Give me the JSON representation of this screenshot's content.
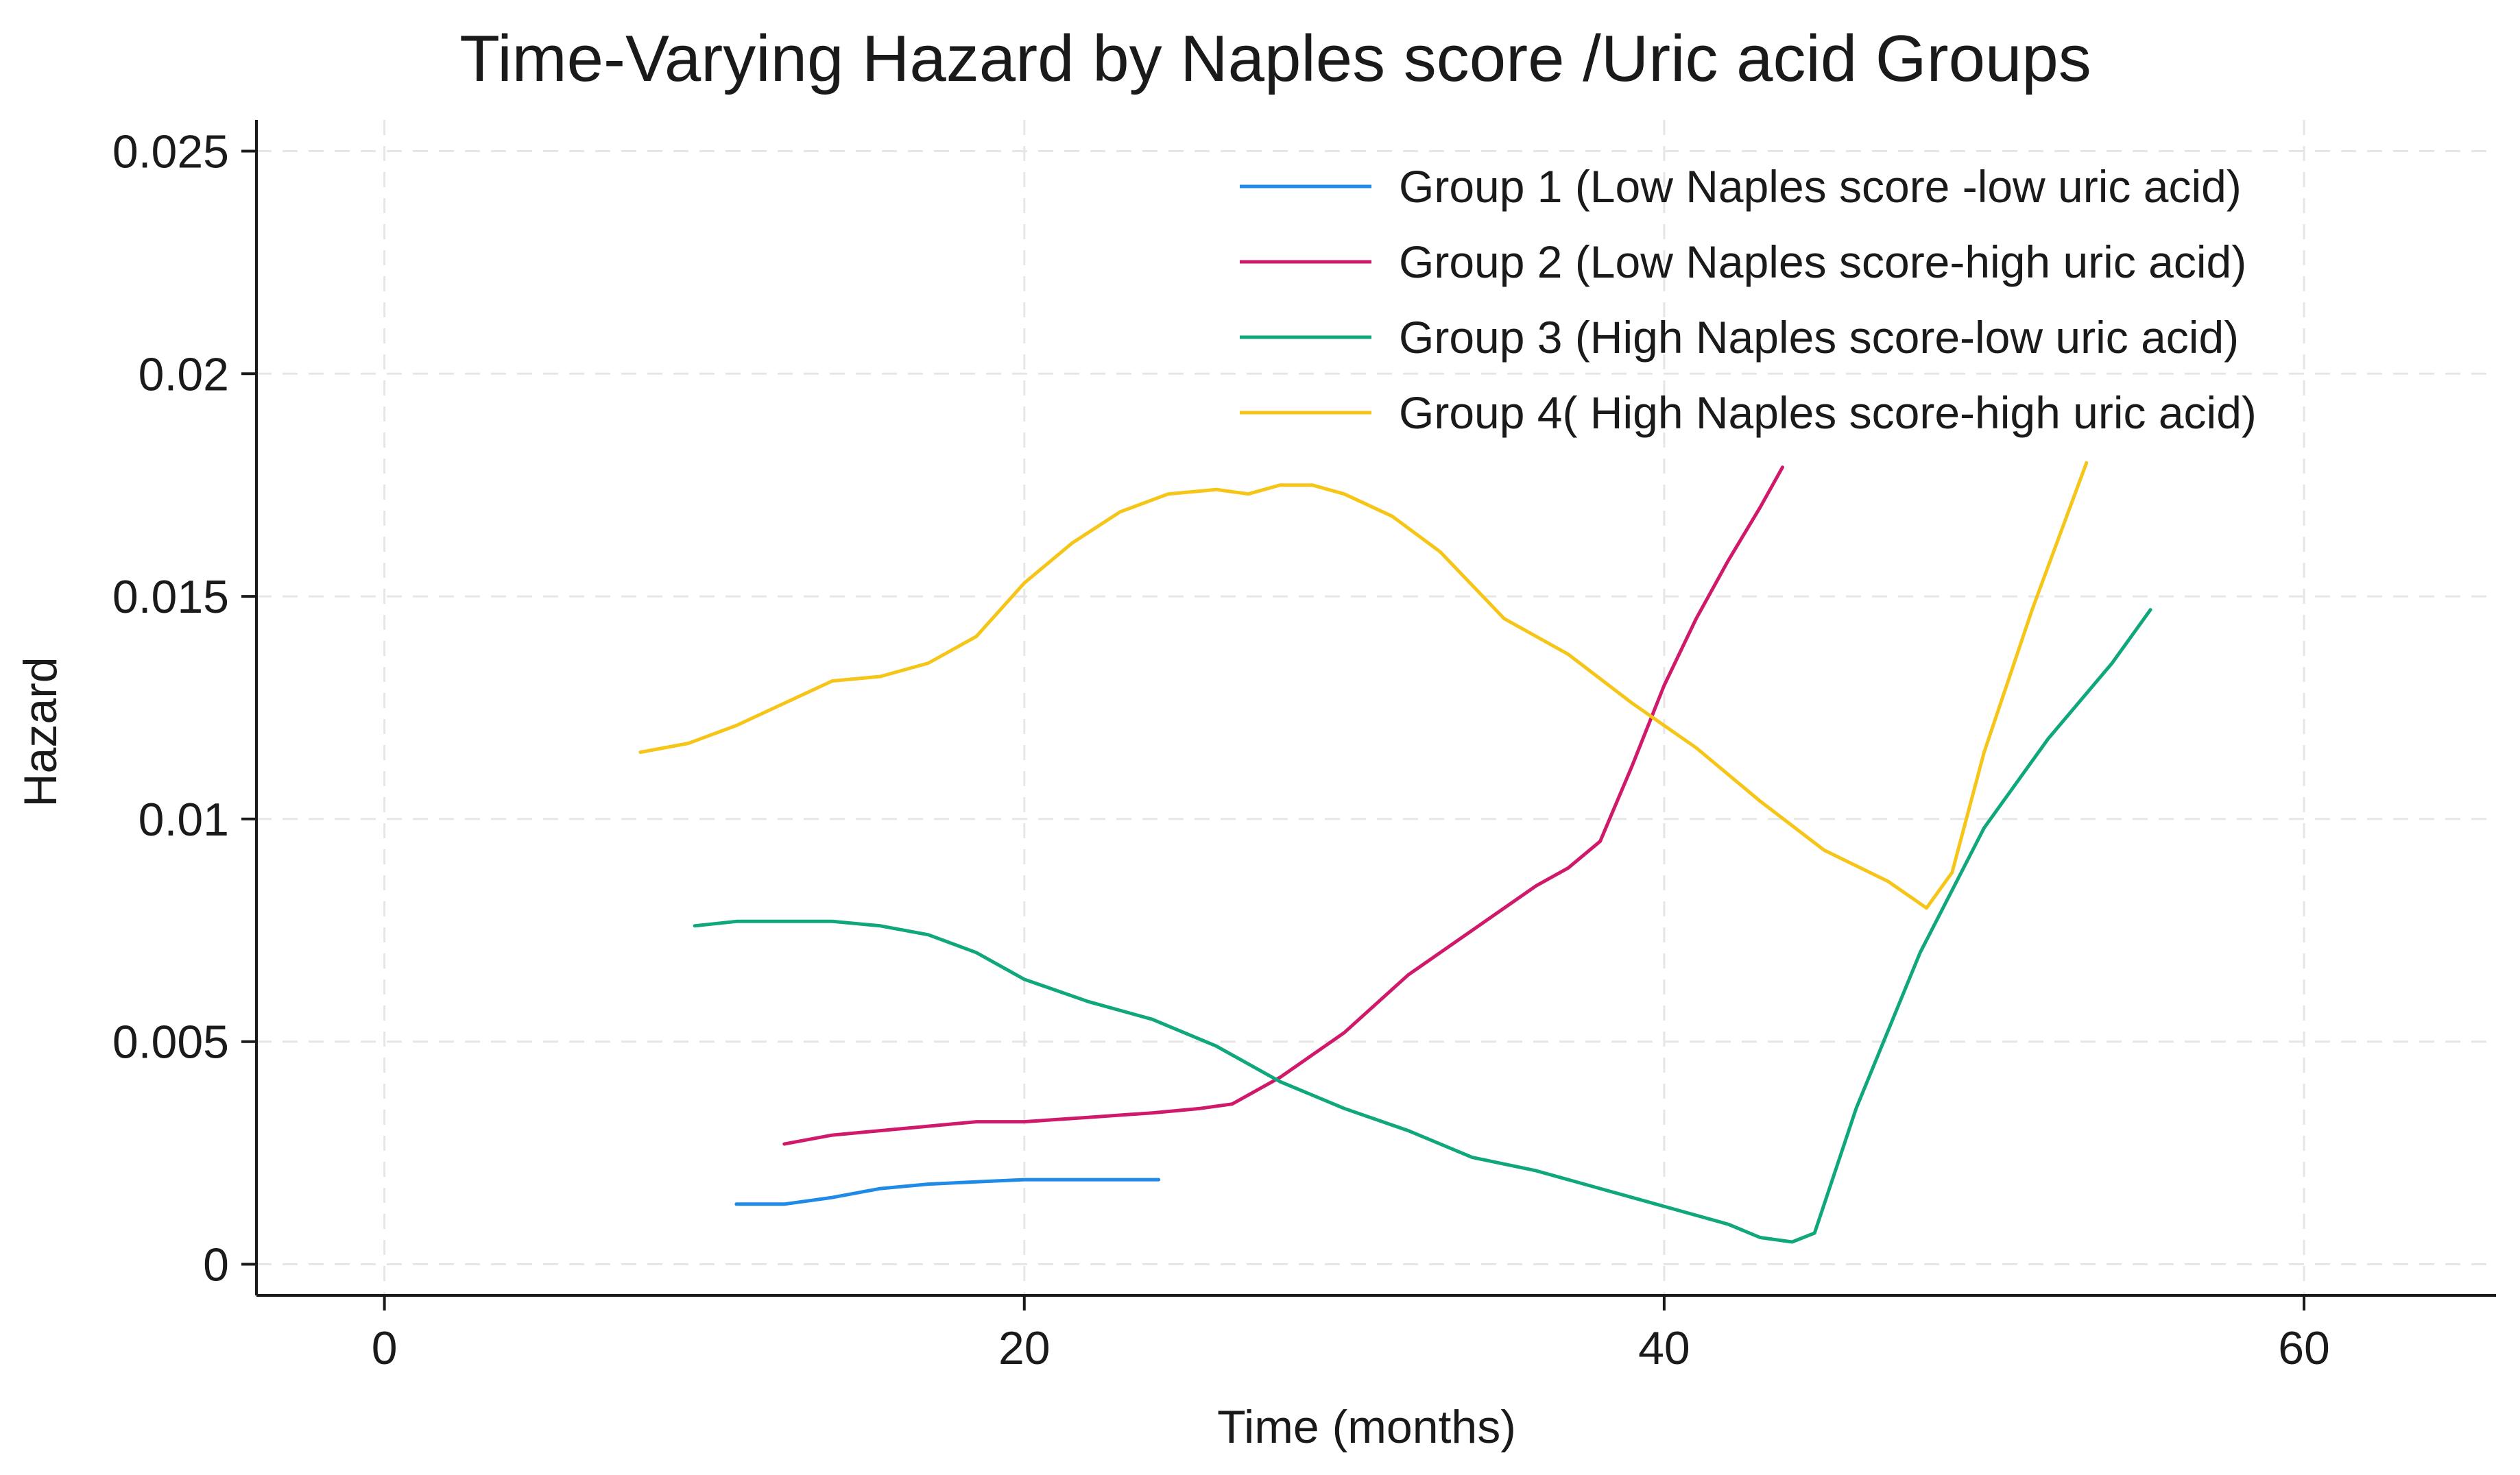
{
  "chart_data": {
    "type": "line",
    "title": "Time-Varying Hazard by Naples score /Uric acid Groups",
    "xlabel": "Time (months)",
    "ylabel": "Hazard",
    "xlim": [
      -4,
      66
    ],
    "ylim": [
      -0.0007,
      0.0257
    ],
    "xticks": [
      0,
      20,
      40,
      60
    ],
    "xtick_labels": [
      "0",
      "20",
      "40",
      "60"
    ],
    "yticks": [
      0,
      0.005,
      0.01,
      0.015,
      0.02,
      0.025
    ],
    "ytick_labels": [
      "0",
      "0.005",
      "0.01",
      "0.015",
      "0.02",
      "0.025"
    ],
    "grid": true,
    "legend_position": "top-right",
    "series": [
      {
        "name": "Group 1 (Low Naples score -low uric acid)",
        "color": "#1f8be6",
        "x": [
          11,
          12.5,
          14,
          15.5,
          17,
          18.5,
          20,
          22,
          24.2
        ],
        "y": [
          0.00135,
          0.00135,
          0.0015,
          0.0017,
          0.0018,
          0.00185,
          0.0019,
          0.0019,
          0.0019
        ]
      },
      {
        "name": "Group 2 (Low Naples score-high uric acid)",
        "color": "#d0196a",
        "x": [
          12.5,
          14,
          15.5,
          17,
          18.5,
          20,
          22,
          24,
          25.5,
          26.5,
          28,
          30,
          32,
          34,
          36,
          37,
          38,
          39,
          40,
          41,
          42,
          43,
          43.7
        ],
        "y": [
          0.0027,
          0.0029,
          0.003,
          0.0031,
          0.0032,
          0.0032,
          0.0033,
          0.0034,
          0.0035,
          0.0036,
          0.0042,
          0.0052,
          0.0065,
          0.0075,
          0.0085,
          0.0089,
          0.0095,
          0.0112,
          0.013,
          0.0145,
          0.0158,
          0.017,
          0.0179
        ]
      },
      {
        "name": "Group 3 (High Naples score-low uric acid)",
        "color": "#10a77c",
        "x": [
          9.7,
          11,
          12.5,
          14,
          15.5,
          17,
          18.5,
          20,
          22,
          24,
          26,
          28,
          30,
          32,
          34,
          36,
          38,
          40,
          42,
          43,
          44,
          44.7,
          46,
          48,
          50,
          52,
          54,
          55.2
        ],
        "y": [
          0.0076,
          0.0077,
          0.0077,
          0.0077,
          0.0076,
          0.0074,
          0.007,
          0.0064,
          0.0059,
          0.0055,
          0.0049,
          0.0041,
          0.0035,
          0.003,
          0.0024,
          0.0021,
          0.0017,
          0.0013,
          0.0009,
          0.0006,
          0.0005,
          0.0007,
          0.0035,
          0.007,
          0.0098,
          0.0118,
          0.0135,
          0.0147
        ]
      },
      {
        "name": "Group 4( High Naples score-high uric acid)",
        "color": "#f5c518",
        "x": [
          8,
          9.5,
          11,
          12.5,
          14,
          15.5,
          17,
          18.5,
          20,
          21.5,
          23,
          24.5,
          26,
          27,
          28,
          29,
          30,
          31.5,
          33,
          35,
          37,
          39,
          41,
          43,
          45,
          47,
          48.2,
          49,
          50,
          51.5,
          53.2
        ],
        "y": [
          0.0115,
          0.0117,
          0.0121,
          0.0126,
          0.0131,
          0.0132,
          0.0135,
          0.0141,
          0.0153,
          0.0162,
          0.0169,
          0.0173,
          0.0174,
          0.0173,
          0.0175,
          0.0175,
          0.0173,
          0.0168,
          0.016,
          0.0145,
          0.0137,
          0.0126,
          0.0116,
          0.0104,
          0.0093,
          0.0086,
          0.008,
          0.0088,
          0.0115,
          0.0147,
          0.018
        ]
      }
    ]
  }
}
